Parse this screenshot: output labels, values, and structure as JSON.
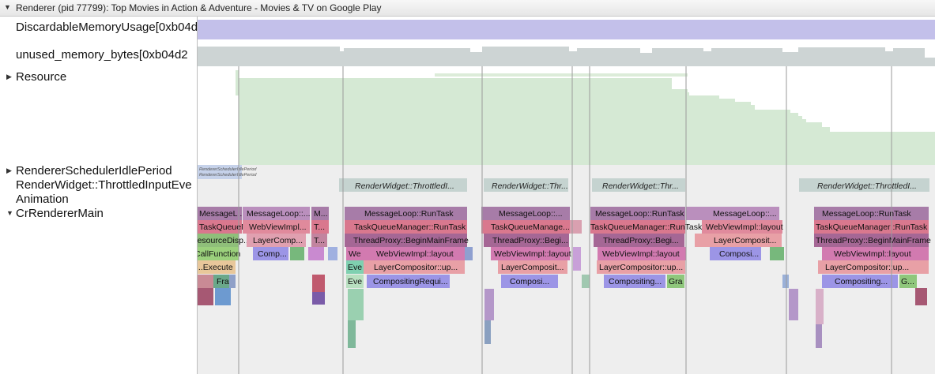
{
  "process": {
    "title": "Renderer (pid 77799): Top Movies in Action & Adventure - Movies & TV on Google Play",
    "expanded_icon": "triangle-down-icon"
  },
  "tracks": [
    {
      "label": "DiscardableMemoryUsage[0xb04d"
    },
    {
      "label": "unused_memory_bytes[0xb04d2"
    },
    {
      "label": "Resource",
      "icon": "triangle-right-icon"
    },
    {
      "label": "RendererSchedulerIdlePeriod",
      "icon": "triangle-right-icon"
    },
    {
      "label": "RenderWidget::ThrottledInputEve"
    },
    {
      "label": "Animation"
    },
    {
      "label": "CrRendererMain",
      "icon": "triangle-down-icon"
    }
  ],
  "idle_period": {
    "label1": "RendererSchedulerIdlePeriod",
    "label2": "RendererSchedulerIdlePeriod"
  },
  "throttled_input": [
    {
      "text": "RenderWidget::ThrottledI..."
    },
    {
      "text": "RenderWidget::Thr..."
    },
    {
      "text": "RenderWidget::Thr..."
    },
    {
      "text": "RenderWidget::ThrottledI..."
    }
  ],
  "main_slices": [
    {
      "text": "MessageL..."
    },
    {
      "text": "MessageLoop::..."
    },
    {
      "text": "M..."
    },
    {
      "text": "MessageLoop::RunTask"
    },
    {
      "text": "MessageLoop::..."
    },
    {
      "text": "MessageLoop::RunTask"
    },
    {
      "text": "MessageLoop::..."
    },
    {
      "text": "MessageLoop::RunTask"
    },
    {
      "text": "TaskQueueM..."
    },
    {
      "text": "WebViewImpl..."
    },
    {
      "text": "T..."
    },
    {
      "text": "TaskQueueManager::RunTask"
    },
    {
      "text": "TaskQueueManage..."
    },
    {
      "text": "TaskQueueManager::RunTask"
    },
    {
      "text": "WebViewImpl::layout"
    },
    {
      "text": "TaskQueueManager::RunTask"
    },
    {
      "text": "ResourceDisp..."
    },
    {
      "text": "LayerComp..."
    },
    {
      "text": "T..."
    },
    {
      "text": "ThreadProxy::BeginMainFrame"
    },
    {
      "text": "ThreadProxy::Begi..."
    },
    {
      "text": "ThreadProxy::Begi..."
    },
    {
      "text": "LayerComposit..."
    },
    {
      "text": "ThreadProxy::BeginMainFrame"
    },
    {
      "text": "CallFunction"
    },
    {
      "text": "Comp..."
    },
    {
      "text": "We"
    },
    {
      "text": "WebViewImpl::layout"
    },
    {
      "text": "WebViewImpl::layout"
    },
    {
      "text": "WebViewImpl::layout"
    },
    {
      "text": "Composi..."
    },
    {
      "text": "WebViewImpl::layout"
    },
    {
      "text": "...Execute"
    },
    {
      "text": "Eve"
    },
    {
      "text": "LayerCompositor::up..."
    },
    {
      "text": "LayerComposit..."
    },
    {
      "text": "LayerCompositor::up..."
    },
    {
      "text": "LayerCompositor::up..."
    },
    {
      "text": "Fra"
    },
    {
      "text": "Eve"
    },
    {
      "text": "CompositingRequi..."
    },
    {
      "text": "Composi..."
    },
    {
      "text": "Compositing..."
    },
    {
      "text": "Gra"
    },
    {
      "text": "Compositing..."
    },
    {
      "text": "G..."
    }
  ],
  "colors": {
    "discardable": "#c3c0ea",
    "unused_memory": "#cdd4d4",
    "resource": "#d5e9d4",
    "idle": "#c6d2ea",
    "throttled": "#c5d3d0",
    "message_loop": "#a77ca8",
    "task_queue": "#d9788e",
    "thread_proxy": "#a56795",
    "webview_layout": "#d27ab0",
    "layer_compositor": "#e8a0a6",
    "compositing": "#9c95e6"
  }
}
